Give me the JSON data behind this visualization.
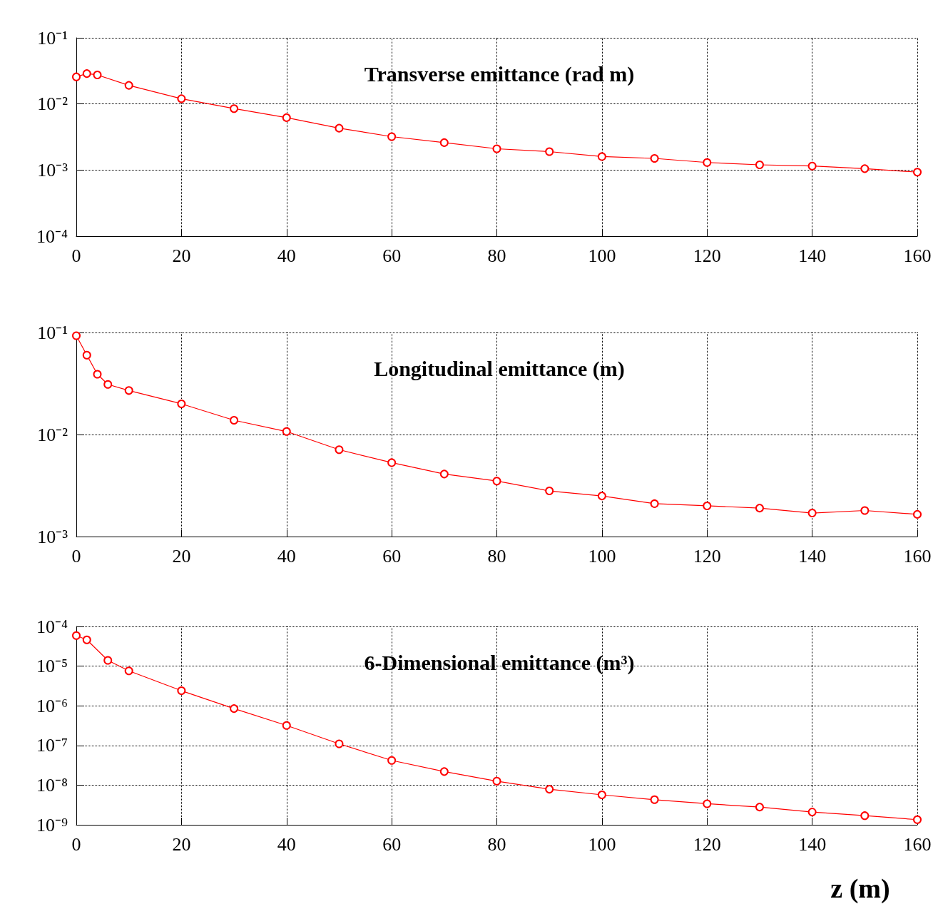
{
  "chart_data": [
    {
      "type": "line",
      "title": "Transverse emittance (rad m)",
      "log": "y",
      "grid": true,
      "marker": "circle",
      "line_style": "solid",
      "xlim": [
        0,
        160
      ],
      "xticks": [
        0,
        20,
        40,
        60,
        80,
        100,
        120,
        140,
        160
      ],
      "ylim": [
        0.0001,
        0.1
      ],
      "yticks": [
        {
          "value": 0.0001,
          "label": "10⁻⁴"
        },
        {
          "value": 0.001,
          "label": "10⁻³"
        },
        {
          "value": 0.01,
          "label": "10⁻²"
        },
        {
          "value": 0.1,
          "label": "10⁻¹"
        }
      ],
      "x": [
        0,
        2,
        4,
        10,
        20,
        30,
        40,
        50,
        60,
        70,
        80,
        90,
        100,
        110,
        120,
        130,
        140,
        150,
        160
      ],
      "series": [
        {
          "color": "#ff0000",
          "values": [
            0.0257,
            0.0288,
            0.0275,
            0.0191,
            0.012,
            0.0085,
            0.0062,
            0.0043,
            0.0032,
            0.0026,
            0.0021,
            0.0019,
            0.0016,
            0.0015,
            0.0013,
            0.0012,
            0.00115,
            0.00105,
            0.00093
          ]
        }
      ]
    },
    {
      "type": "line",
      "title": "Longitudinal emittance (m)",
      "log": "y",
      "grid": true,
      "marker": "circle",
      "line_style": "solid",
      "xlim": [
        0,
        160
      ],
      "xticks": [
        0,
        20,
        40,
        60,
        80,
        100,
        120,
        140,
        160
      ],
      "ylim": [
        0.001,
        0.1
      ],
      "yticks": [
        {
          "value": 0.001,
          "label": "10⁻³"
        },
        {
          "value": 0.01,
          "label": "10⁻²"
        },
        {
          "value": 0.1,
          "label": "10⁻¹"
        }
      ],
      "x": [
        0,
        2,
        4,
        6,
        10,
        20,
        30,
        40,
        50,
        60,
        70,
        80,
        90,
        100,
        110,
        120,
        130,
        140,
        150,
        160
      ],
      "series": [
        {
          "color": "#ff0000",
          "values": [
            0.093,
            0.06,
            0.039,
            0.031,
            0.027,
            0.02,
            0.0138,
            0.0107,
            0.0071,
            0.0053,
            0.0041,
            0.0035,
            0.0028,
            0.0025,
            0.0021,
            0.002,
            0.0019,
            0.0017,
            0.0018,
            0.00165
          ]
        }
      ]
    },
    {
      "type": "line",
      "title": "6-Dimensional emittance (m³)",
      "xlabel": "z (m)",
      "log": "y",
      "grid": true,
      "marker": "circle",
      "line_style": "solid",
      "xlim": [
        0,
        160
      ],
      "xticks": [
        0,
        20,
        40,
        60,
        80,
        100,
        120,
        140,
        160
      ],
      "ylim": [
        1e-09,
        0.0001
      ],
      "yticks": [
        {
          "value": 1e-09,
          "label": "10⁻⁹"
        },
        {
          "value": 1e-08,
          "label": "10⁻⁸"
        },
        {
          "value": 1e-07,
          "label": "10⁻⁷"
        },
        {
          "value": 1e-06,
          "label": "10⁻⁶"
        },
        {
          "value": 1e-05,
          "label": "10⁻⁵"
        },
        {
          "value": 0.0001,
          "label": "10⁻⁴"
        }
      ],
      "x": [
        0,
        2,
        6,
        10,
        20,
        30,
        40,
        50,
        60,
        70,
        80,
        90,
        100,
        110,
        120,
        130,
        140,
        150,
        160
      ],
      "series": [
        {
          "color": "#ff0000",
          "values": [
            5.9e-05,
            4.6e-05,
            1.4e-05,
            7.6e-06,
            2.4e-06,
            8.5e-07,
            3.2e-07,
            1.1e-07,
            4.2e-08,
            2.2e-08,
            1.26e-08,
            7.9e-09,
            5.7e-09,
            4.3e-09,
            3.4e-09,
            2.8e-09,
            2.1e-09,
            1.7e-09,
            1.35e-09
          ]
        }
      ]
    }
  ]
}
